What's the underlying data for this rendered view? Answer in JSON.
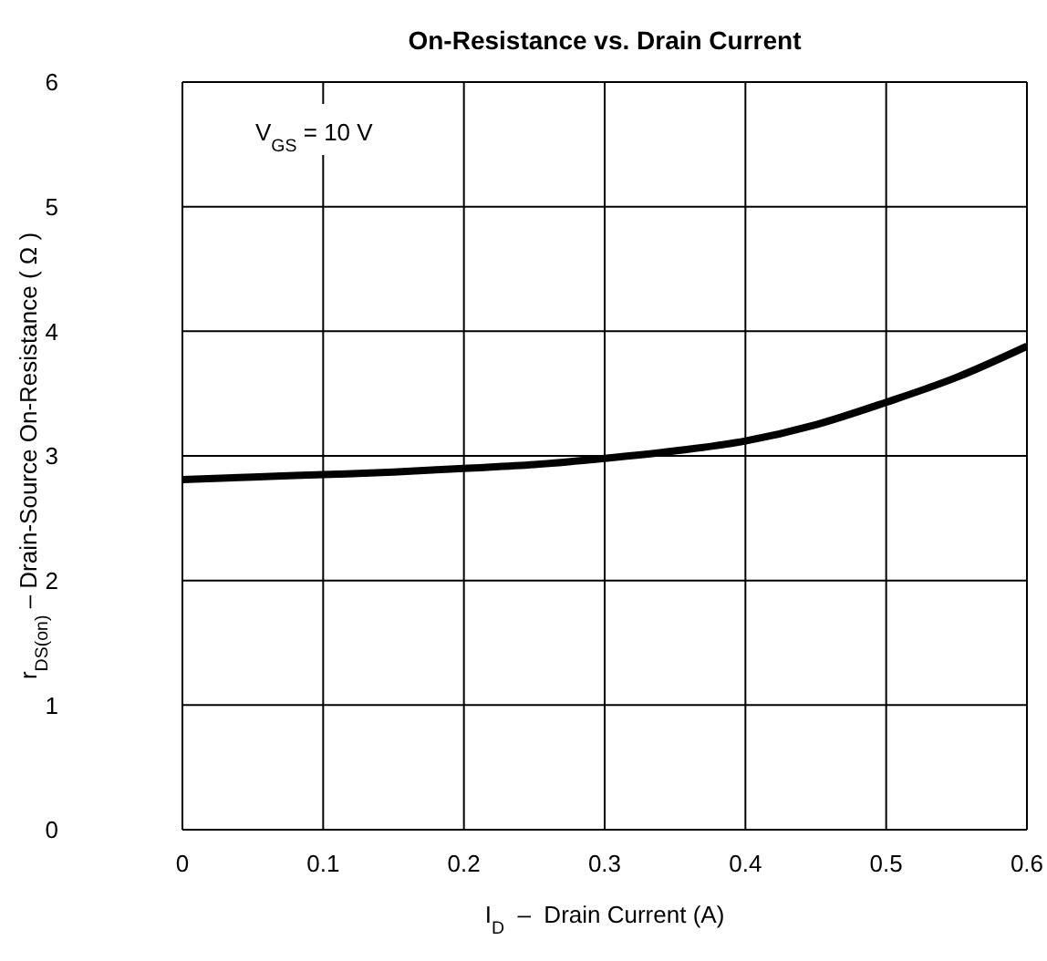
{
  "chart_data": {
    "type": "line",
    "title": "On-Resistance vs. Drain Current",
    "xlabel": "I$_{D}$  –  Drain Current (A)",
    "ylabel": "r$_{DS(on)}$ – Drain-Source On-Resistance ( Ω )",
    "annotations": [
      "V$_{GS}$ = 10 V"
    ],
    "x": [
      0,
      0.05,
      0.1,
      0.15,
      0.2,
      0.25,
      0.3,
      0.35,
      0.4,
      0.45,
      0.5,
      0.55,
      0.6
    ],
    "series": [
      {
        "color": "#000000",
        "values": [
          2.81,
          2.83,
          2.85,
          2.87,
          2.9,
          2.93,
          2.98,
          3.04,
          3.12,
          3.25,
          3.43,
          3.63,
          3.88
        ]
      }
    ],
    "xlim": [
      0,
      0.6
    ],
    "xticks": [
      0,
      0.1,
      0.2,
      0.3,
      0.4,
      0.5,
      0.6
    ],
    "ylim": [
      0,
      6
    ],
    "yticks": [
      0,
      1,
      2,
      3,
      4,
      5,
      6
    ],
    "grid": true,
    "marker": "none",
    "line_style": "solid"
  }
}
